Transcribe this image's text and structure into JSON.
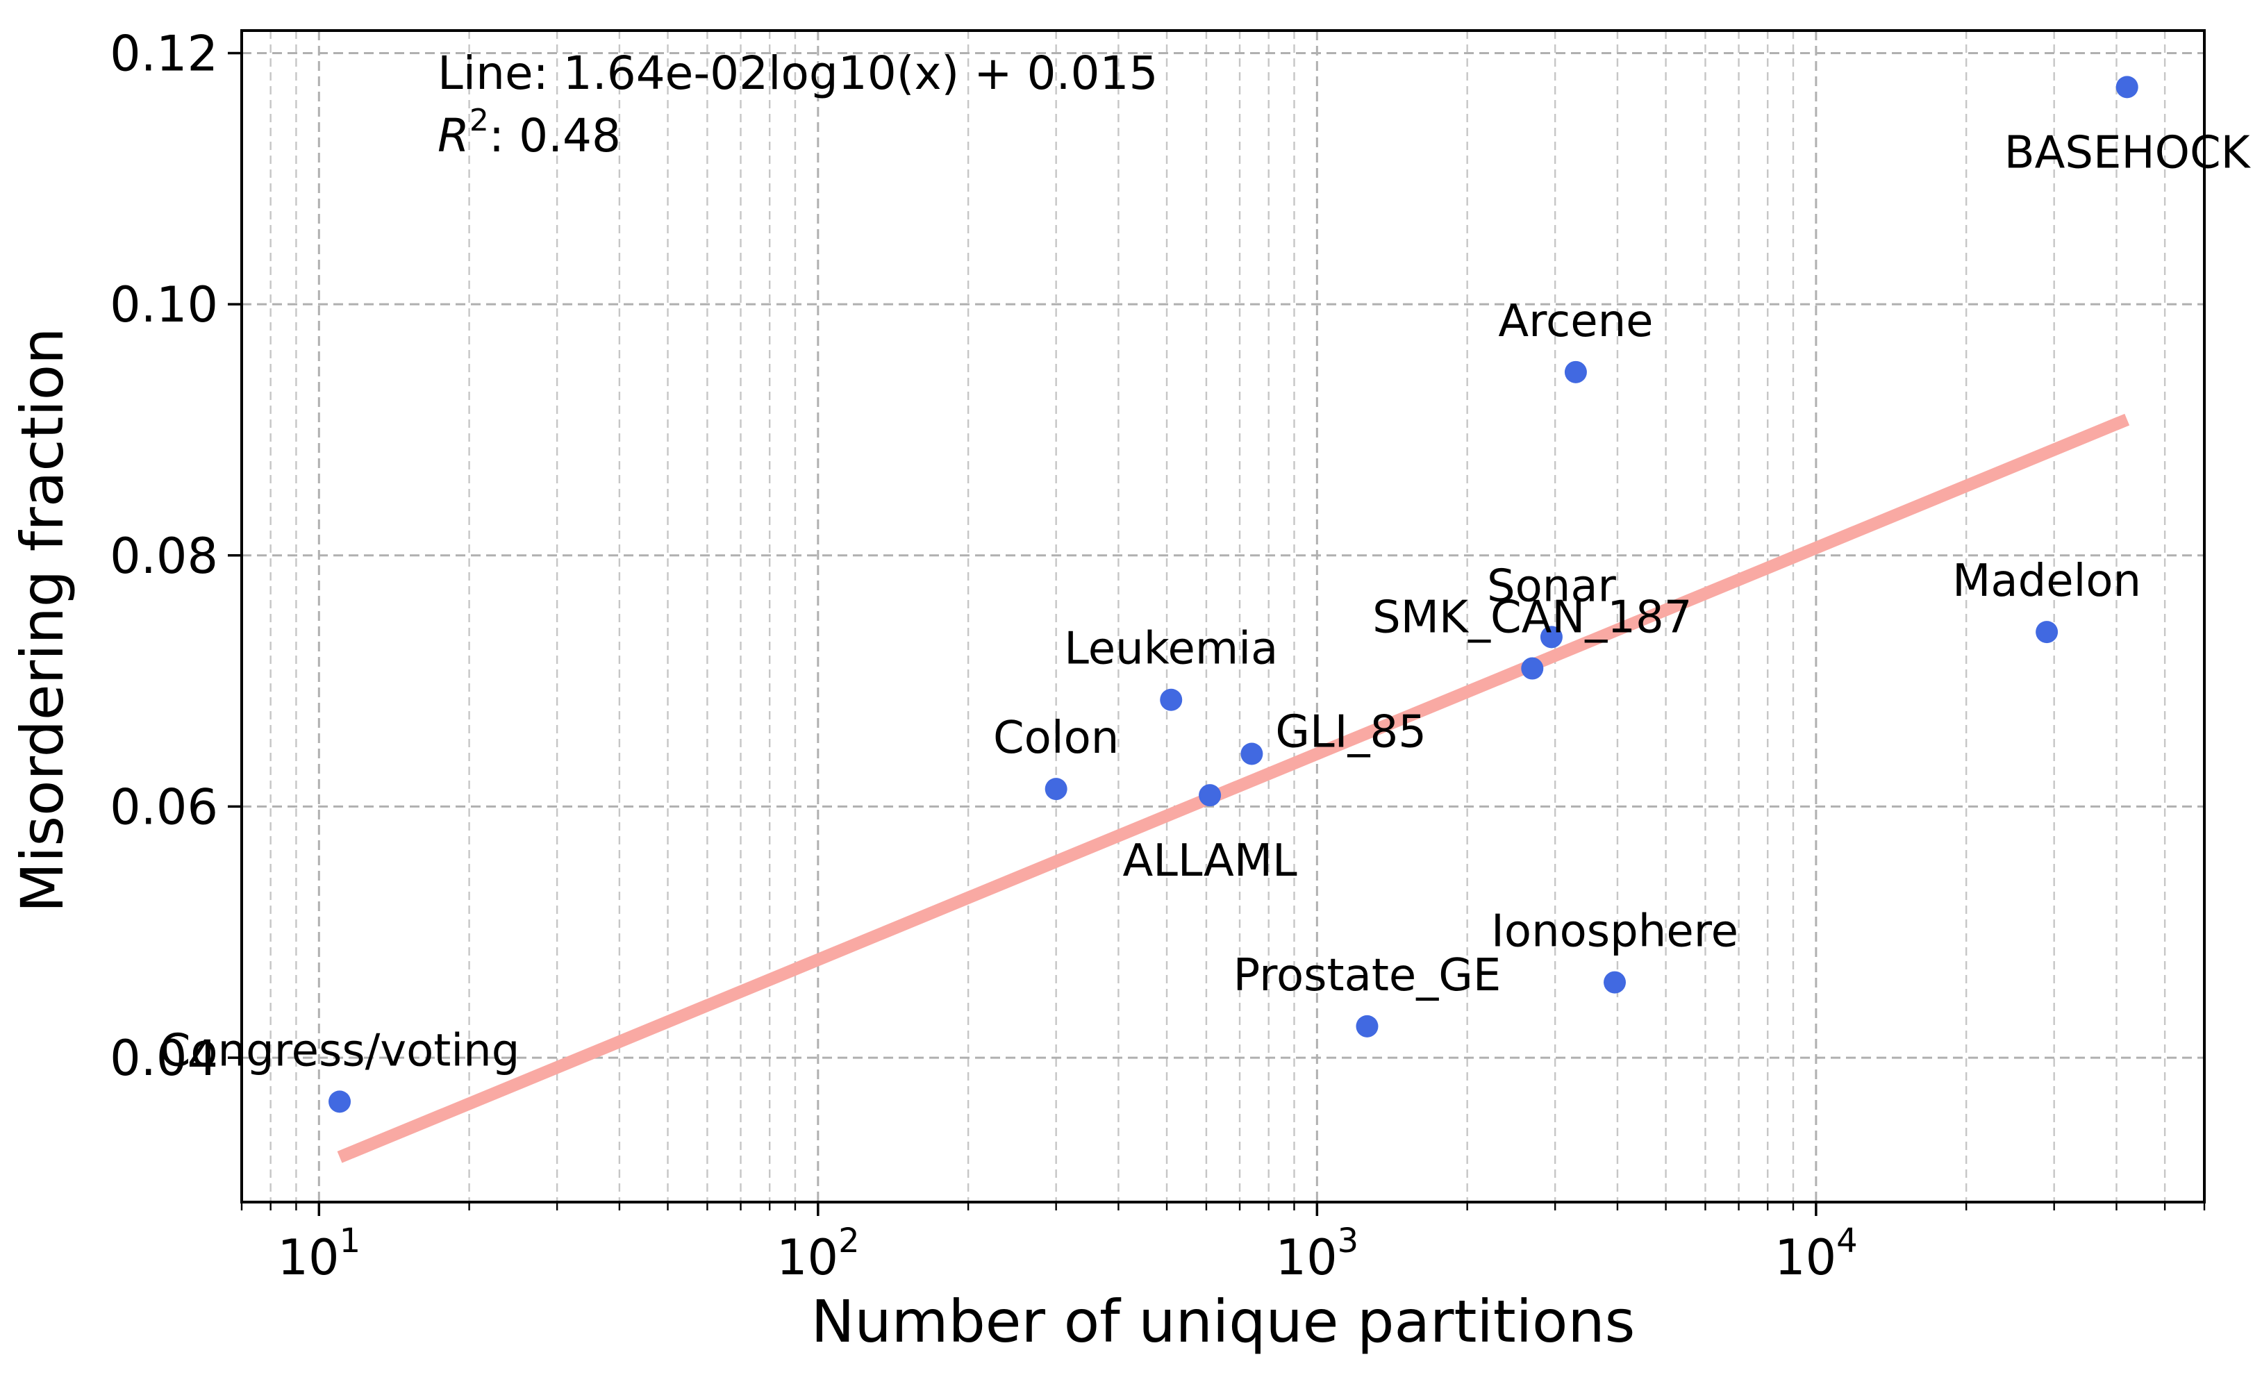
{
  "chart_data": {
    "type": "scatter",
    "xscale": "log",
    "xlabel": "Number of unique partitions",
    "ylabel": "Misordering fraction",
    "xlim": [
      7,
      60000
    ],
    "ylim": [
      0.0285,
      0.1218
    ],
    "grid": true,
    "y_ticks": [
      {
        "value": 0.04,
        "label": "0.04"
      },
      {
        "value": 0.06,
        "label": "0.06"
      },
      {
        "value": 0.08,
        "label": "0.08"
      },
      {
        "value": 0.1,
        "label": "0.10"
      },
      {
        "value": 0.12,
        "label": "0.12"
      }
    ],
    "x_ticks": [
      {
        "value": 10,
        "base": "10",
        "exp": "1"
      },
      {
        "value": 100,
        "base": "10",
        "exp": "2"
      },
      {
        "value": 1000,
        "base": "10",
        "exp": "3"
      },
      {
        "value": 10000,
        "base": "10",
        "exp": "4"
      }
    ],
    "points": [
      {
        "name": "Congress/voting",
        "x": 11,
        "y": 0.0365,
        "label_pos": "above"
      },
      {
        "name": "Colon",
        "x": 300,
        "y": 0.0614,
        "label_pos": "above"
      },
      {
        "name": "Leukemia",
        "x": 510,
        "y": 0.0685,
        "label_pos": "above"
      },
      {
        "name": "ALLAML",
        "x": 610,
        "y": 0.0609,
        "label_pos": "below"
      },
      {
        "name": "GLI_85",
        "x": 740,
        "y": 0.0642,
        "label_pos": "right"
      },
      {
        "name": "Prostate_GE",
        "x": 1260,
        "y": 0.0425,
        "label_pos": "above"
      },
      {
        "name": "SMK_CAN_187",
        "x": 2700,
        "y": 0.071,
        "label_pos": "above"
      },
      {
        "name": "Sonar",
        "x": 2950,
        "y": 0.0735,
        "label_pos": "above"
      },
      {
        "name": "Arcene",
        "x": 3300,
        "y": 0.0946,
        "label_pos": "above"
      },
      {
        "name": "Ionosphere",
        "x": 3950,
        "y": 0.046,
        "label_pos": "above"
      },
      {
        "name": "Madelon",
        "x": 29000,
        "y": 0.0739,
        "label_pos": "above"
      },
      {
        "name": "BASEHOCK",
        "x": 42000,
        "y": 0.1173,
        "label_pos": "below"
      }
    ],
    "fit_line": {
      "slope": 0.0164,
      "intercept": 0.015,
      "x_start": 11,
      "x_end": 42000
    },
    "annotation": {
      "line_text": "Line: 1.64e-02log10(x) + 0.015",
      "r2_label": "R",
      "r2_exp": "2",
      "r2_value": ": 0.48"
    },
    "colors": {
      "points": "#4169e1",
      "fit": "#f9a9a3",
      "grid": "#b0b0b0"
    }
  }
}
